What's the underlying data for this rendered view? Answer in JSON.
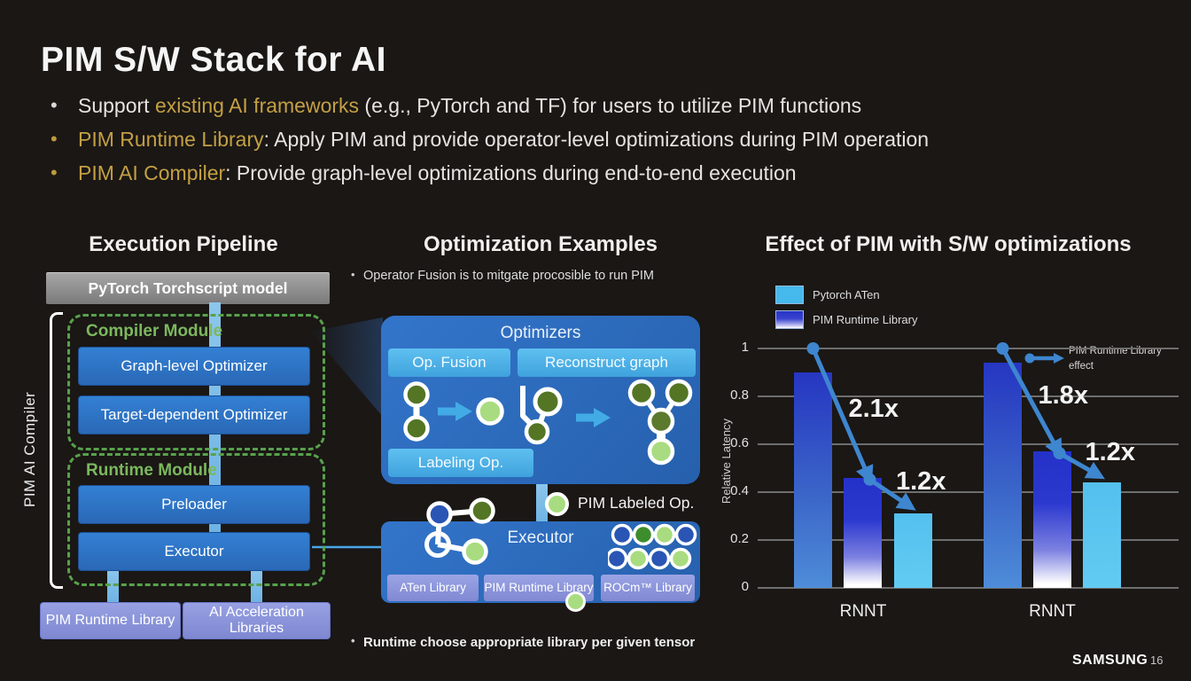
{
  "slide": {
    "title": "PIM S/W Stack for AI",
    "brand": "SAMSUNG",
    "page": "16",
    "bullets": [
      {
        "pre": "Support ",
        "gold": "existing AI frameworks",
        "post": " (e.g., PyTorch and TF) for users to utilize PIM functions"
      },
      {
        "pre": "",
        "gold": "PIM Runtime Library",
        "post": ": Apply PIM and provide operator-level optimizations during PIM operation"
      },
      {
        "pre": "",
        "gold": "PIM AI Compiler",
        "post": ": Provide graph-level optimizations during end-to-end execution"
      }
    ]
  },
  "colors": {
    "background": "#1a1715",
    "gold_accent": "#c4a044",
    "pipeline_blue": "#2e75c5",
    "module_green": "#58a14c",
    "library_purple": "#8d96dc",
    "cyan_bar": "#54c0ee",
    "navy_bar": "#2431c8",
    "line_blue": "#3e86cf",
    "node_dark_green": "#537524",
    "node_light_green": "#a9dc80"
  },
  "pipeline": {
    "heading": "Execution Pipeline",
    "model_box": "PyTorch Torchscript model",
    "bracket_label": "PIM AI Compiler",
    "compiler_module": {
      "label": "Compiler Module",
      "boxes": [
        "Graph-level Optimizer",
        "Target-dependent Optimizer"
      ]
    },
    "runtime_module": {
      "label": "Runtime Module",
      "boxes": [
        "Preloader",
        "Executor"
      ]
    },
    "libraries": [
      "PIM Runtime Library",
      "AI Acceleration Libraries"
    ]
  },
  "optimization": {
    "heading": "Optimization Examples",
    "note_top": "Operator Fusion is to mitgate procosible to run PIM",
    "optimizers_title": "Optimizers",
    "op_fusion": "Op. Fusion",
    "reconstruct": "Reconstruct graph",
    "labeling": "Labeling Op.",
    "labeled_op": "PIM Labeled Op.",
    "executor_title": "Executor",
    "libraries": [
      "ATen Library",
      "PIM Runtime Library",
      "ROCm™ Library"
    ],
    "note_bottom": "Runtime choose appropriate library per given tensor"
  },
  "chart_data": {
    "type": "bar",
    "title": "Effect of PIM with S/W optimizations",
    "ylabel": "Relative Latency",
    "ylim": [
      0,
      1
    ],
    "yticks": [
      1,
      0.8,
      0.6,
      0.4,
      0.2,
      0
    ],
    "grid": true,
    "legend": [
      {
        "label": "Pytorch ATen",
        "color": "#45b9ec"
      },
      {
        "label": "PIM Runtime Library",
        "color": "gradient #2733c8 to #ffffff"
      }
    ],
    "annotation_legend": "PIM Runtime Library effect",
    "categories": [
      "RNNT",
      "RNNT"
    ],
    "groups": [
      {
        "label": "RNNT",
        "values": [
          0.9,
          0.46,
          0.31
        ],
        "speedups": [
          "2.1x",
          "1.2x"
        ]
      },
      {
        "label": "RNNT",
        "values": [
          0.94,
          0.57,
          0.44
        ],
        "speedups": [
          "1.8x",
          "1.2x"
        ]
      }
    ]
  }
}
